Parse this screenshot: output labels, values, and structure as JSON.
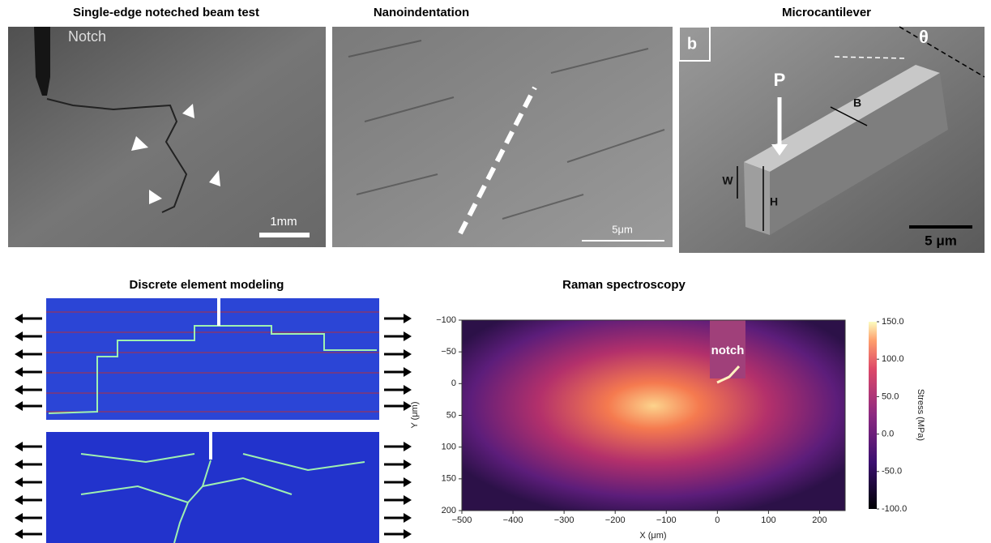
{
  "panels": {
    "notched_beam": {
      "title": "Single-edge noteched beam test",
      "label": "Notch",
      "scale_bar": "1mm"
    },
    "nanoindentation": {
      "title": "Nanoindentation",
      "scale_bar": "5μm"
    },
    "microcantilever": {
      "title": "Microcantilever",
      "panel_letter": "b",
      "angle": "θ",
      "load": "P",
      "dims": [
        "B",
        "W",
        "H"
      ],
      "scale_bar": "5 μm"
    },
    "dem": {
      "title": "Discrete element modeling"
    },
    "raman": {
      "title": "Raman spectroscopy",
      "annotation": "notch",
      "x_label": "X (μm)",
      "y_label": "Y (μm)",
      "xlim": [
        -500,
        250
      ],
      "ylim": [
        -100,
        200
      ],
      "xticks": [
        {
          "value": -500,
          "label": "−500"
        },
        {
          "value": -400,
          "label": "−400"
        },
        {
          "value": -300,
          "label": "−300"
        },
        {
          "value": -200,
          "label": "−200"
        },
        {
          "value": -100,
          "label": "−100"
        },
        0,
        100,
        200
      ],
      "yticks": [
        {
          "value": -100,
          "label": "−100"
        },
        {
          "value": -50,
          "label": "−50"
        },
        0,
        50,
        100,
        150,
        200
      ],
      "colorbar_label": "Stress (MPa)",
      "clim": [
        -100,
        150
      ],
      "colorbar_ticks": [
        {
          "value": 150,
          "label": "150.0"
        },
        {
          "value": 100,
          "label": "100.0"
        },
        {
          "value": 50,
          "label": "50.0"
        },
        {
          "value": 0,
          "label": "0.0"
        },
        {
          "value": -50,
          "label": "-50.0"
        },
        {
          "value": -100,
          "label": "-100.0"
        }
      ]
    }
  }
}
